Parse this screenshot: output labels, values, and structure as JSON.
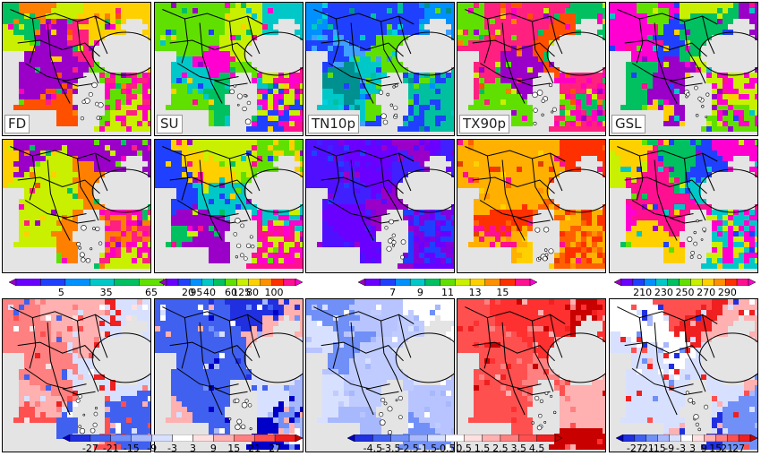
{
  "panel_labels": [
    "FD",
    "SU",
    "TN10p",
    "TX90p",
    "GSL"
  ],
  "colorbars": [
    {
      "ticks": [
        "5",
        "35",
        "65",
        "95",
        "125"
      ],
      "colors": [
        "#9a00c8",
        "#6a00ff",
        "#2040ff",
        "#0090ff",
        "#00c8c8",
        "#00c060",
        "#60e000",
        "#c8f000",
        "#ffd000",
        "#ff9000",
        "#ff3000",
        "#ff1090",
        "#ff00d0"
      ]
    },
    {
      "ticks": [
        "20",
        "40",
        "60",
        "80",
        "100"
      ],
      "colors": [
        "#9a00c8",
        "#6a00ff",
        "#2040ff",
        "#0090ff",
        "#00c8c8",
        "#00c060",
        "#60e000",
        "#c8f000",
        "#ffd000",
        "#ff9000",
        "#ff3000",
        "#ff1090",
        "#ff00d0"
      ]
    },
    {
      "ticks": [
        "7",
        "9",
        "11",
        "13",
        "15"
      ],
      "colors": [
        "#9a00c8",
        "#6a00ff",
        "#2040ff",
        "#0090ff",
        "#00c8c8",
        "#00c060",
        "#60e000",
        "#c8f000",
        "#ffd000",
        "#ff9000",
        "#ff3000",
        "#ff1090",
        "#ff00d0"
      ]
    },
    {
      "ticks": [
        "210",
        "230",
        "250",
        "270",
        "290"
      ],
      "colors": [
        "#9a00c8",
        "#6a00ff",
        "#2040ff",
        "#0090ff",
        "#00c8c8",
        "#00c060",
        "#60e000",
        "#c8f000",
        "#ffd000",
        "#ff9000",
        "#ff3000",
        "#ff1090",
        "#ff00d0"
      ]
    },
    {
      "ticks": [
        "-27",
        "-21",
        "-15",
        "-9",
        "-3",
        "3",
        "9",
        "15",
        "21",
        "27"
      ],
      "colors": [
        "#0000c8",
        "#2030e0",
        "#4060f0",
        "#7090f8",
        "#a8b8fc",
        "#d8e0ff",
        "#ffffff",
        "#ffe0e0",
        "#ffb0b0",
        "#ff8080",
        "#ff5050",
        "#f02020",
        "#c80000"
      ]
    },
    {
      "ticks": [
        "-4.5",
        "-3.5",
        "-2.5",
        "-1.5",
        "-0.5",
        "0.5",
        "1.5",
        "2.5",
        "3.5",
        "4.5"
      ],
      "colors": [
        "#0000c8",
        "#2030e0",
        "#4060f0",
        "#7090f8",
        "#a8b8fc",
        "#d8e0ff",
        "#ffffff",
        "#ffe0e0",
        "#ffb0b0",
        "#ff8080",
        "#ff5050",
        "#f02020",
        "#c80000"
      ]
    },
    {
      "ticks": [
        "-27",
        "-21",
        "-15",
        "-9",
        "-3",
        "3",
        "9",
        "15",
        "21",
        "27"
      ],
      "colors": [
        "#0000c8",
        "#2030e0",
        "#4060f0",
        "#7090f8",
        "#a8b8fc",
        "#d8e0ff",
        "#ffffff",
        "#ffe0e0",
        "#ffb0b0",
        "#ff8080",
        "#ff5050",
        "#f02020",
        "#c80000"
      ]
    }
  ],
  "panel_styles": [
    [
      "multi-warm",
      "multi-mixed",
      "multi-cool",
      "multi-warm",
      "multi-mixed"
    ],
    [
      "multi-warm",
      "multi-mixed",
      "multi-violet",
      "multi-orange",
      "multi-mixed"
    ],
    [
      "diff-red",
      "diff-blue",
      "diff-lightblue",
      "diff-strongred",
      "diff-mixed"
    ]
  ],
  "land_color": "#e4e4e4"
}
